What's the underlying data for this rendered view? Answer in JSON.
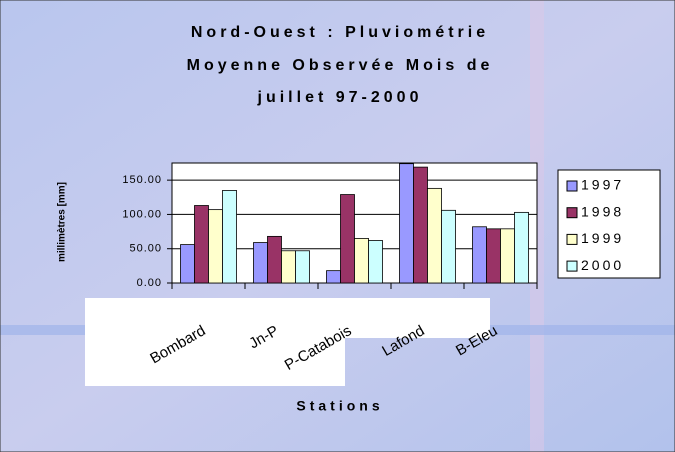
{
  "chart_data": {
    "type": "bar",
    "title_lines": [
      "Nord-Ouest : Pluviométrie",
      "Moyenne Observée Mois de",
      "juillet 97-2000"
    ],
    "y_label": "millimètres [mm]",
    "x_label": "Stations",
    "categories": [
      "Bombard",
      "Jn-P",
      "P-Catabois",
      "Lafond",
      "B-Eleu"
    ],
    "series": [
      {
        "name": "1997",
        "color": "#9999ff",
        "values": [
          56,
          59,
          18,
          174,
          82
        ]
      },
      {
        "name": "1998",
        "color": "#993366",
        "values": [
          113,
          68,
          129,
          169,
          79
        ]
      },
      {
        "name": "1999",
        "color": "#ffffcc",
        "values": [
          107,
          47,
          65,
          138,
          79
        ]
      },
      {
        "name": "2000",
        "color": "#ccffff",
        "values": [
          135,
          47,
          62,
          106,
          103
        ]
      }
    ],
    "ylim": [
      0,
      175
    ],
    "yticks": [
      {
        "value": 0,
        "label": "0.00"
      },
      {
        "value": 50,
        "label": "50.00"
      },
      {
        "value": 100,
        "label": "100.00"
      },
      {
        "value": 150,
        "label": "150.00"
      }
    ],
    "grid": true,
    "legend": "right"
  }
}
